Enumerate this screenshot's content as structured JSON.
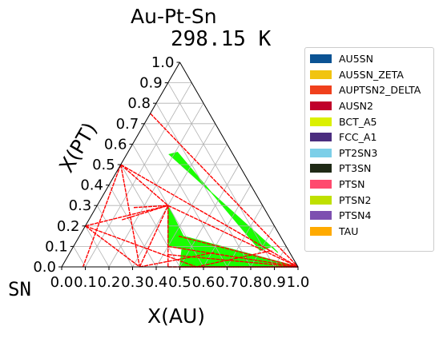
{
  "chart_data": {
    "type": "ternary",
    "title": "Au-Pt-Sn",
    "subtitle": "298.15 K",
    "xlabel": "X(AU)",
    "ylabel": "X(PT)",
    "corner_label": "SN",
    "xlim": [
      0.0,
      1.0
    ],
    "ylim": [
      0.0,
      1.0
    ],
    "x_ticks": [
      "0.0",
      "0.1",
      "0.2",
      "0.3",
      "0.4",
      "0.5",
      "0.6",
      "0.7",
      "0.8",
      "0.9",
      "1.0"
    ],
    "y_ticks": [
      "0.0",
      "0.1",
      "0.2",
      "0.3",
      "0.4",
      "0.5",
      "0.6",
      "0.7",
      "0.8",
      "0.9",
      "1.0"
    ],
    "grid": true,
    "legend_position": "right",
    "legend": [
      {
        "name": "AU5SN",
        "color": "#0b5394"
      },
      {
        "name": "AU5SN_ZETA",
        "color": "#f1c40f"
      },
      {
        "name": "AUPTSN2_DELTA",
        "color": "#f0401c"
      },
      {
        "name": "AUSN2",
        "color": "#c0002a"
      },
      {
        "name": "BCT_A5",
        "color": "#dbf000"
      },
      {
        "name": "FCC_A1",
        "color": "#4b2d7f"
      },
      {
        "name": "PT2SN3",
        "color": "#7ccfe8"
      },
      {
        "name": "PT3SN",
        "color": "#1f2a16"
      },
      {
        "name": "PTSN",
        "color": "#ff4a6e"
      },
      {
        "name": "PTSN2",
        "color": "#bfe000"
      },
      {
        "name": "PTSN4",
        "color": "#7d4fb0"
      },
      {
        "name": "TAU",
        "color": "#ffaa00"
      }
    ],
    "tie_line_color": "#ff0000",
    "region_color": "#19ff00",
    "tie_lines": [
      [
        [
          0.0,
          0.5
        ],
        [
          0.3,
          0.3
        ]
      ],
      [
        [
          0.0,
          0.5
        ],
        [
          1.0,
          0.0
        ]
      ],
      [
        [
          0.0,
          0.5
        ],
        [
          0.09,
          0.0
        ]
      ],
      [
        [
          0.0,
          0.5
        ],
        [
          0.33,
          0.0
        ]
      ],
      [
        [
          0.0,
          0.2
        ],
        [
          0.3,
          0.3
        ]
      ],
      [
        [
          0.0,
          0.2
        ],
        [
          0.33,
          0.0
        ]
      ],
      [
        [
          0.0,
          0.2
        ],
        [
          0.57,
          0.0
        ]
      ],
      [
        [
          0.0,
          0.75
        ],
        [
          1.0,
          0.0
        ]
      ],
      [
        [
          0.3,
          0.3
        ],
        [
          1.0,
          0.0
        ]
      ],
      [
        [
          0.3,
          0.3
        ],
        [
          0.45,
          0.0
        ]
      ],
      [
        [
          0.16,
          0.29
        ],
        [
          0.3,
          0.3
        ]
      ],
      [
        [
          0.14,
          0.23
        ],
        [
          0.3,
          0.3
        ]
      ],
      [
        [
          0.33,
          0.0
        ],
        [
          0.3,
          0.3
        ]
      ],
      [
        [
          0.33,
          0.0
        ],
        [
          0.61,
          0.07
        ]
      ],
      [
        [
          0.45,
          0.0
        ],
        [
          1.0,
          0.0
        ]
      ],
      [
        [
          0.5,
          0.0
        ],
        [
          1.0,
          0.0
        ]
      ],
      [
        [
          0.42,
          0.15
        ],
        [
          1.0,
          0.0
        ]
      ],
      [
        [
          0.4,
          0.1
        ],
        [
          1.0,
          0.0
        ]
      ],
      [
        [
          0.42,
          0.06
        ],
        [
          1.0,
          0.0
        ]
      ],
      [
        [
          0.57,
          0.0
        ],
        [
          0.85,
          0.08
        ]
      ]
    ],
    "regions": [
      [
        [
          0.3,
          0.3
        ],
        [
          0.4,
          0.1
        ],
        [
          1.0,
          0.0
        ],
        [
          0.44,
          0.15
        ]
      ],
      [
        [
          0.44,
          0.15
        ],
        [
          0.5,
          0.0
        ],
        [
          1.0,
          0.0
        ]
      ],
      [
        [
          0.5,
          0.0
        ],
        [
          1.0,
          0.0
        ],
        [
          0.66,
          0.09
        ]
      ],
      [
        [
          0.18,
          0.55
        ],
        [
          0.21,
          0.56
        ],
        [
          0.8,
          0.08
        ],
        [
          0.84,
          0.1
        ],
        [
          0.88,
          0.07
        ]
      ]
    ]
  }
}
